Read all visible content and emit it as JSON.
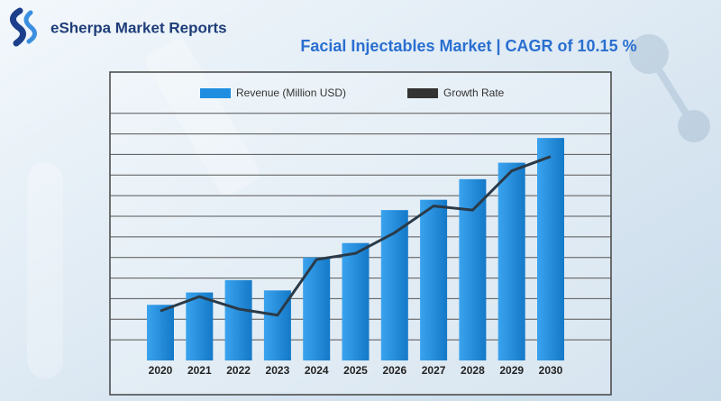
{
  "brand": "eSherpa Market Reports",
  "chart_data": {
    "type": "bar",
    "title": "Facial Injectables Market | CAGR of 10.15 %",
    "categories": [
      "2020",
      "2021",
      "2022",
      "2023",
      "2024",
      "2025",
      "2026",
      "2027",
      "2028",
      "2029",
      "2030"
    ],
    "series": [
      {
        "name": "Revenue (Million USD)",
        "color": "#1f8ee0",
        "values": [
          2.7,
          3.3,
          3.9,
          3.4,
          5.0,
          5.7,
          7.3,
          7.8,
          8.8,
          9.6,
          10.8
        ]
      },
      {
        "name": "Growth Rate",
        "type": "line",
        "color": "#2a3a48",
        "values": [
          2.4,
          3.1,
          2.5,
          2.2,
          4.9,
          5.2,
          6.2,
          7.5,
          7.3,
          9.2,
          9.9
        ]
      }
    ],
    "ylim": [
      0,
      14
    ],
    "yticks": [
      1,
      2,
      3,
      4,
      5,
      6,
      7,
      8,
      9,
      10,
      11,
      12
    ],
    "grid": true,
    "legend": "top"
  }
}
